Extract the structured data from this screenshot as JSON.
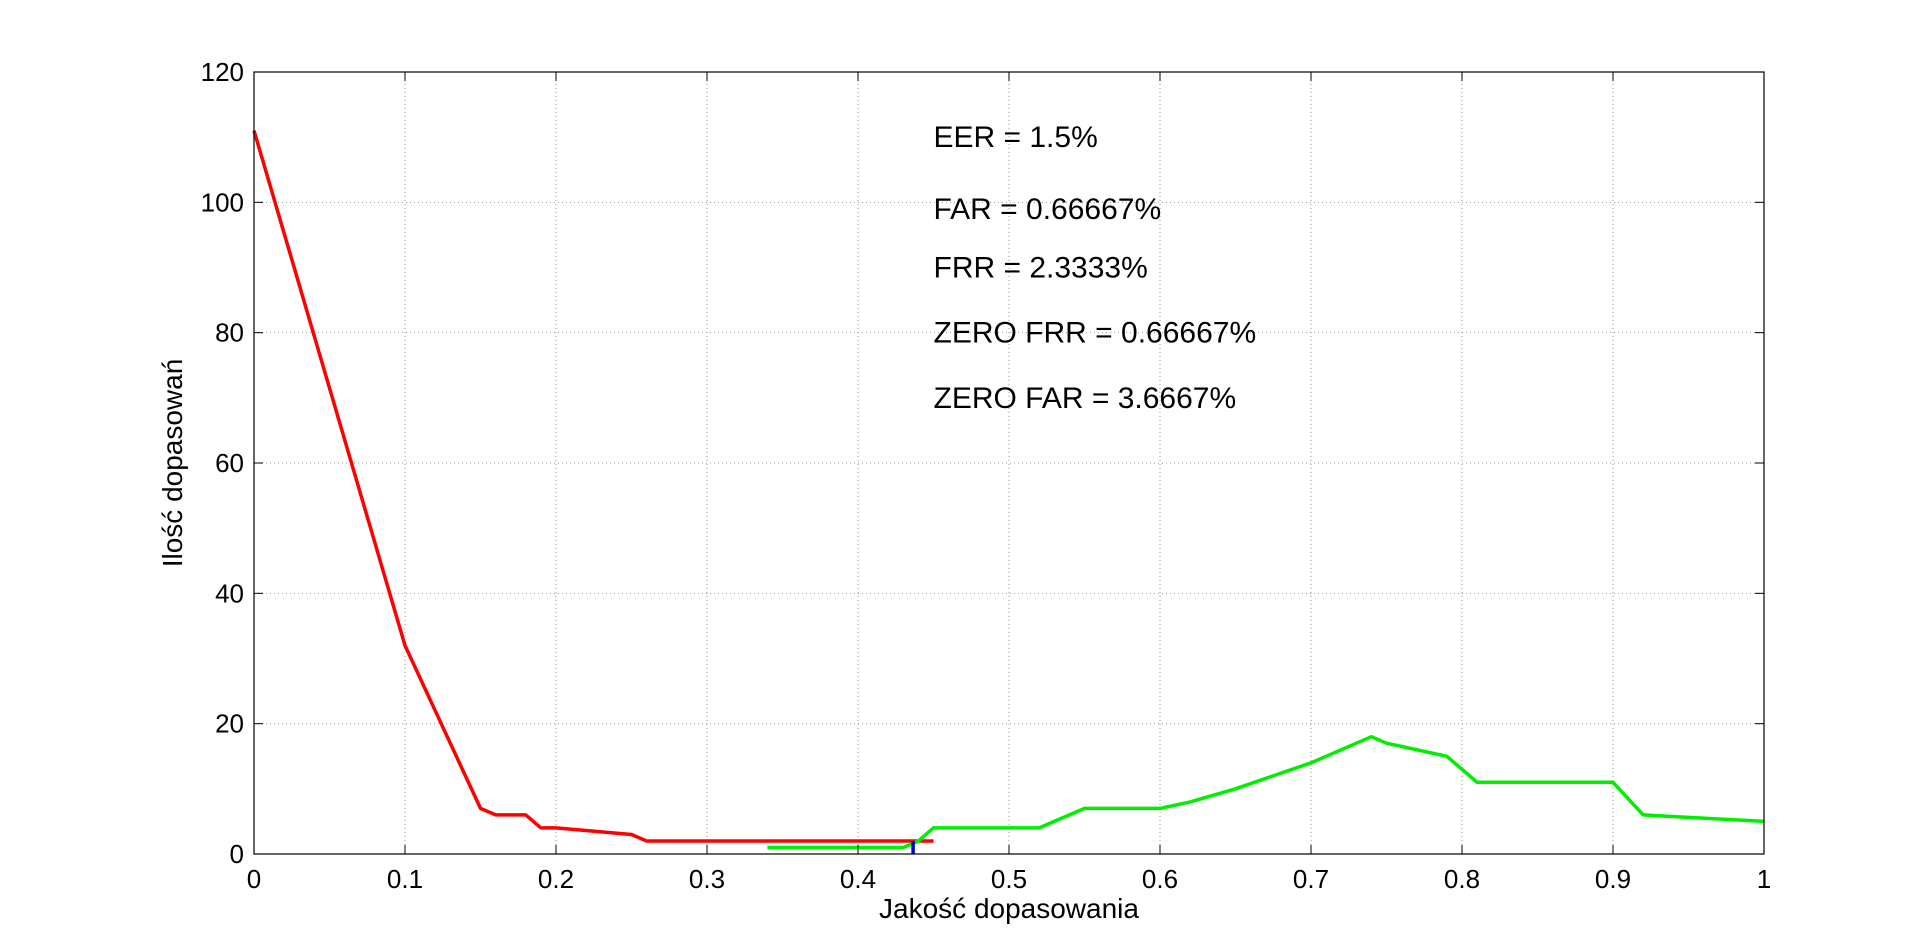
{
  "chart_data": {
    "type": "line",
    "xlabel": "Jakość dopasowania",
    "ylabel": "Ilość dopasowań",
    "xlim": [
      0,
      1
    ],
    "ylim": [
      0,
      120
    ],
    "x_ticks": [
      "0",
      "0.1",
      "0.2",
      "0.3",
      "0.4",
      "0.5",
      "0.6",
      "0.7",
      "0.8",
      "0.9",
      "1"
    ],
    "y_ticks": [
      "0",
      "20",
      "40",
      "60",
      "80",
      "100",
      "120"
    ],
    "grid": true,
    "legend": "none",
    "annotations": [
      {
        "text": "EER = 1.5%",
        "x": 0.45,
        "y": 110
      },
      {
        "text": "FAR = 0.66667%",
        "x": 0.45,
        "y": 99
      },
      {
        "text": "FRR = 2.3333%",
        "x": 0.45,
        "y": 90
      },
      {
        "text": "ZERO FRR = 0.66667%",
        "x": 0.45,
        "y": 80
      },
      {
        "text": "ZERO FAR = 3.6667%",
        "x": 0.45,
        "y": 70
      }
    ],
    "series": [
      {
        "color": "#ff0000",
        "x": [
          0,
          0.1,
          0.15,
          0.16,
          0.18,
          0.19,
          0.2,
          0.25,
          0.26,
          0.3,
          0.35,
          0.4,
          0.45
        ],
        "y": [
          111,
          32,
          7,
          6,
          6,
          4,
          4,
          3,
          2,
          2,
          2,
          2,
          2
        ]
      },
      {
        "color": "#00ee00",
        "x": [
          0.34,
          0.43,
          0.44,
          0.45,
          0.5,
          0.52,
          0.55,
          0.6,
          0.62,
          0.65,
          0.7,
          0.74,
          0.75,
          0.79,
          0.81,
          0.9,
          0.92,
          1.0
        ],
        "y": [
          1,
          1,
          2,
          4,
          4,
          4,
          7,
          7,
          8,
          10,
          14,
          18,
          17,
          15,
          11,
          11,
          6,
          5
        ]
      },
      {
        "color": "#0000cc",
        "x": [
          0.4365,
          0.4365
        ],
        "y": [
          0,
          2
        ]
      }
    ]
  }
}
